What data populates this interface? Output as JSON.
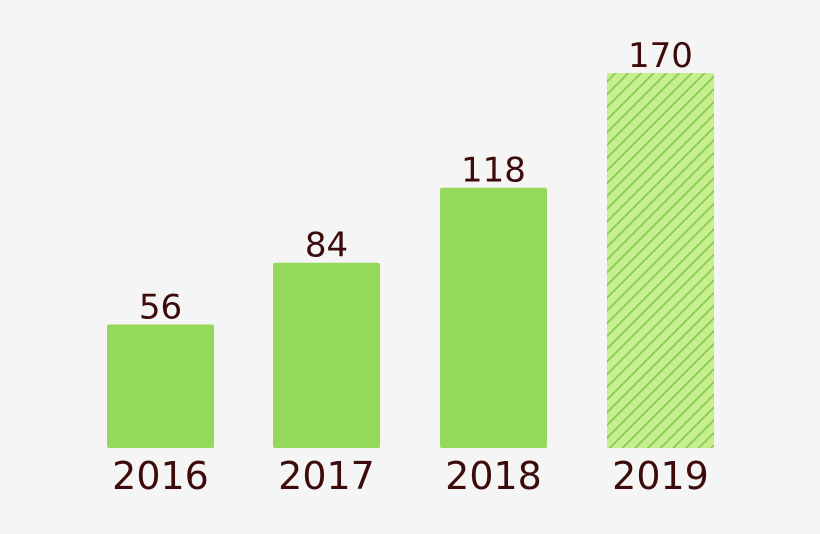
{
  "chart_data": {
    "type": "bar",
    "categories": [
      "2016",
      "2017",
      "2018",
      "2019"
    ],
    "values": [
      56,
      84,
      118,
      170
    ],
    "data_labels": [
      "56",
      "84",
      "118",
      "170"
    ],
    "title": "",
    "xlabel": "",
    "ylabel": "",
    "ylim": [
      0,
      170
    ],
    "grid": false,
    "legend": "none",
    "bar_styles": [
      "solid",
      "solid",
      "solid",
      "hatched"
    ],
    "colors": {
      "bar": "#95d95b",
      "hatch_fill": "#c8ef8f",
      "hatch_line": "#86cb4d",
      "text": "#3d0b0b",
      "background": "#f5f5f5"
    }
  }
}
